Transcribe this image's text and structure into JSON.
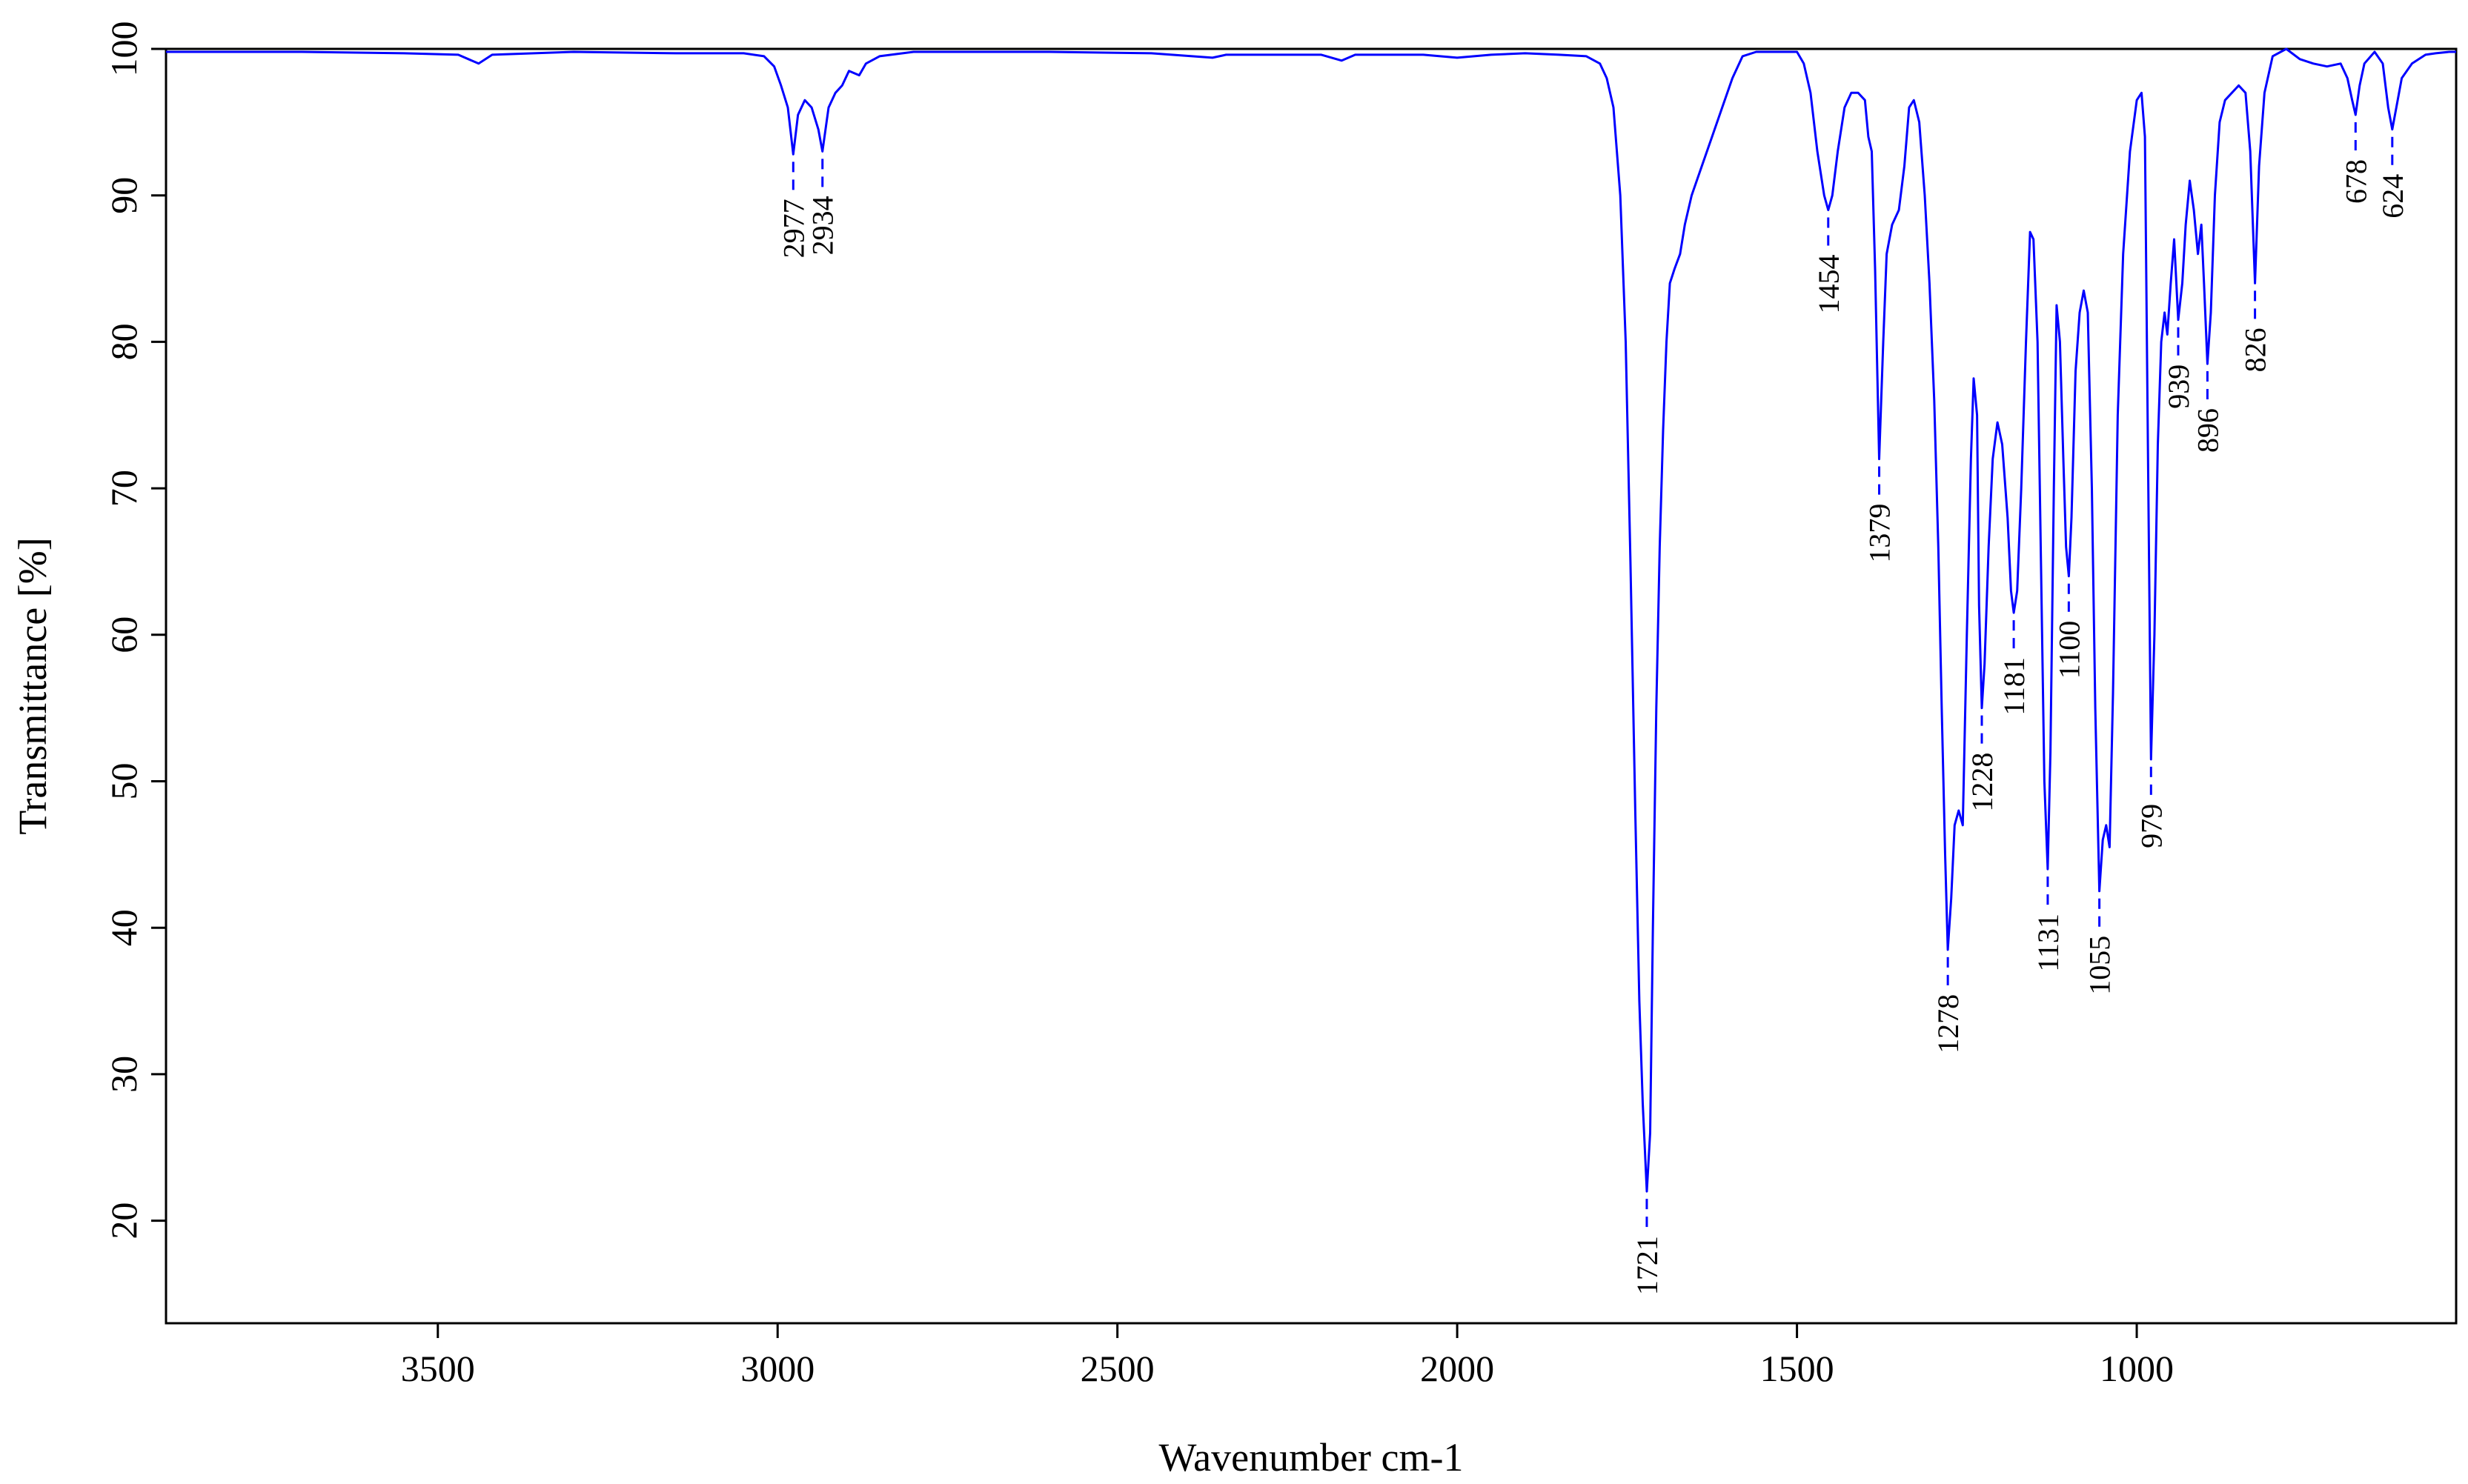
{
  "chart_data": {
    "type": "line",
    "title": "",
    "xlabel": "Wavenumber cm-1",
    "ylabel": "Transmittance [%]",
    "xlim": [
      3900,
      530
    ],
    "ylim": [
      13,
      100
    ],
    "x_reversed": true,
    "grid": false,
    "legend": "none",
    "line_color": "#0000ff",
    "x_ticks": [
      3500,
      3000,
      2500,
      2000,
      1500,
      1000
    ],
    "y_ticks": [
      20,
      30,
      40,
      50,
      60,
      70,
      80,
      90,
      100
    ],
    "series": [
      {
        "points": [
          [
            3900,
            99.8
          ],
          [
            3700,
            99.8
          ],
          [
            3550,
            99.7
          ],
          [
            3470,
            99.6
          ],
          [
            3440,
            99.0
          ],
          [
            3420,
            99.6
          ],
          [
            3300,
            99.8
          ],
          [
            3150,
            99.7
          ],
          [
            3050,
            99.7
          ],
          [
            3020,
            99.5
          ],
          [
            3005,
            98.8
          ],
          [
            2995,
            97.5
          ],
          [
            2985,
            96.0
          ],
          [
            2977,
            92.8
          ],
          [
            2970,
            95.5
          ],
          [
            2960,
            96.5
          ],
          [
            2950,
            96.0
          ],
          [
            2940,
            94.5
          ],
          [
            2934,
            93.0
          ],
          [
            2925,
            96.0
          ],
          [
            2915,
            97.0
          ],
          [
            2905,
            97.5
          ],
          [
            2895,
            98.5
          ],
          [
            2880,
            98.2
          ],
          [
            2870,
            99.0
          ],
          [
            2850,
            99.5
          ],
          [
            2800,
            99.8
          ],
          [
            2600,
            99.8
          ],
          [
            2450,
            99.7
          ],
          [
            2360,
            99.4
          ],
          [
            2340,
            99.6
          ],
          [
            2200,
            99.6
          ],
          [
            2170,
            99.2
          ],
          [
            2150,
            99.6
          ],
          [
            2050,
            99.6
          ],
          [
            2000,
            99.4
          ],
          [
            1950,
            99.6
          ],
          [
            1900,
            99.7
          ],
          [
            1850,
            99.6
          ],
          [
            1810,
            99.5
          ],
          [
            1790,
            99.0
          ],
          [
            1780,
            98.0
          ],
          [
            1770,
            96.0
          ],
          [
            1760,
            90.0
          ],
          [
            1752,
            80.0
          ],
          [
            1745,
            65.0
          ],
          [
            1738,
            48.0
          ],
          [
            1732,
            35.0
          ],
          [
            1727,
            28.0
          ],
          [
            1721,
            22.0
          ],
          [
            1716,
            26.0
          ],
          [
            1712,
            40.0
          ],
          [
            1707,
            55.0
          ],
          [
            1702,
            66.0
          ],
          [
            1697,
            74.0
          ],
          [
            1692,
            80.0
          ],
          [
            1687,
            84.0
          ],
          [
            1680,
            85.0
          ],
          [
            1672,
            86.0
          ],
          [
            1665,
            88.0
          ],
          [
            1655,
            90.0
          ],
          [
            1640,
            92.0
          ],
          [
            1625,
            94.0
          ],
          [
            1610,
            96.0
          ],
          [
            1595,
            98.0
          ],
          [
            1580,
            99.5
          ],
          [
            1560,
            99.8
          ],
          [
            1500,
            99.8
          ],
          [
            1490,
            99.0
          ],
          [
            1480,
            97.0
          ],
          [
            1470,
            93.0
          ],
          [
            1460,
            90.0
          ],
          [
            1454,
            89.0
          ],
          [
            1448,
            90.0
          ],
          [
            1440,
            93.0
          ],
          [
            1430,
            96.0
          ],
          [
            1420,
            97.0
          ],
          [
            1410,
            97.0
          ],
          [
            1400,
            96.5
          ],
          [
            1395,
            94.0
          ],
          [
            1390,
            93.0
          ],
          [
            1385,
            85.0
          ],
          [
            1379,
            72.0
          ],
          [
            1373,
            80.0
          ],
          [
            1368,
            86.0
          ],
          [
            1360,
            88.0
          ],
          [
            1350,
            89.0
          ],
          [
            1342,
            92.0
          ],
          [
            1335,
            96.0
          ],
          [
            1328,
            96.5
          ],
          [
            1320,
            95.0
          ],
          [
            1312,
            90.0
          ],
          [
            1305,
            84.0
          ],
          [
            1298,
            76.0
          ],
          [
            1292,
            66.0
          ],
          [
            1287,
            55.0
          ],
          [
            1282,
            45.0
          ],
          [
            1278,
            38.5
          ],
          [
            1273,
            42.0
          ],
          [
            1268,
            47.0
          ],
          [
            1262,
            48.0
          ],
          [
            1256,
            47.0
          ],
          [
            1250,
            60.0
          ],
          [
            1244,
            72.0
          ],
          [
            1240,
            77.5
          ],
          [
            1235,
            75.0
          ],
          [
            1232,
            62.0
          ],
          [
            1228,
            55.0
          ],
          [
            1224,
            58.0
          ],
          [
            1218,
            66.0
          ],
          [
            1212,
            72.0
          ],
          [
            1205,
            74.5
          ],
          [
            1198,
            73.0
          ],
          [
            1190,
            68.0
          ],
          [
            1185,
            63.0
          ],
          [
            1181,
            61.5
          ],
          [
            1176,
            63.0
          ],
          [
            1170,
            70.0
          ],
          [
            1163,
            80.0
          ],
          [
            1157,
            87.5
          ],
          [
            1152,
            87.0
          ],
          [
            1146,
            80.0
          ],
          [
            1141,
            65.0
          ],
          [
            1136,
            50.0
          ],
          [
            1131,
            44.0
          ],
          [
            1127,
            52.0
          ],
          [
            1122,
            70.0
          ],
          [
            1118,
            82.5
          ],
          [
            1113,
            80.0
          ],
          [
            1108,
            72.0
          ],
          [
            1104,
            66.0
          ],
          [
            1100,
            64.0
          ],
          [
            1096,
            68.0
          ],
          [
            1090,
            78.0
          ],
          [
            1084,
            82.0
          ],
          [
            1078,
            83.5
          ],
          [
            1072,
            82.0
          ],
          [
            1066,
            70.0
          ],
          [
            1061,
            55.0
          ],
          [
            1055,
            42.5
          ],
          [
            1050,
            46.0
          ],
          [
            1045,
            47.0
          ],
          [
            1040,
            45.5
          ],
          [
            1035,
            56.0
          ],
          [
            1028,
            75.0
          ],
          [
            1020,
            86.0
          ],
          [
            1010,
            93.0
          ],
          [
            1000,
            96.5
          ],
          [
            993,
            97.0
          ],
          [
            988,
            94.0
          ],
          [
            984,
            75.0
          ],
          [
            979,
            51.5
          ],
          [
            974,
            60.0
          ],
          [
            969,
            73.0
          ],
          [
            964,
            80.0
          ],
          [
            959,
            82.0
          ],
          [
            955,
            80.5
          ],
          [
            950,
            84.0
          ],
          [
            945,
            87.0
          ],
          [
            939,
            81.5
          ],
          [
            933,
            84.0
          ],
          [
            928,
            88.0
          ],
          [
            922,
            91.0
          ],
          [
            916,
            89.0
          ],
          [
            910,
            86.0
          ],
          [
            905,
            88.0
          ],
          [
            901,
            84.0
          ],
          [
            896,
            78.5
          ],
          [
            891,
            82.0
          ],
          [
            885,
            90.0
          ],
          [
            878,
            95.0
          ],
          [
            870,
            96.5
          ],
          [
            860,
            97.0
          ],
          [
            850,
            97.5
          ],
          [
            840,
            97.0
          ],
          [
            833,
            93.0
          ],
          [
            826,
            84.0
          ],
          [
            820,
            92.0
          ],
          [
            812,
            97.0
          ],
          [
            800,
            99.5
          ],
          [
            780,
            100.0
          ],
          [
            760,
            99.3
          ],
          [
            740,
            99.0
          ],
          [
            720,
            98.8
          ],
          [
            700,
            99.0
          ],
          [
            690,
            98.0
          ],
          [
            683,
            96.5
          ],
          [
            678,
            95.5
          ],
          [
            672,
            97.5
          ],
          [
            665,
            99.0
          ],
          [
            650,
            99.8
          ],
          [
            638,
            99.0
          ],
          [
            630,
            96.0
          ],
          [
            624,
            94.5
          ],
          [
            618,
            96.0
          ],
          [
            610,
            98.0
          ],
          [
            595,
            99.0
          ],
          [
            575,
            99.6
          ],
          [
            560,
            99.7
          ],
          [
            540,
            99.8
          ],
          [
            530,
            99.8
          ]
        ]
      }
    ],
    "peaks": [
      {
        "label": "2977",
        "x": 2977,
        "y": 92.8
      },
      {
        "label": "2934",
        "x": 2934,
        "y": 93.0
      },
      {
        "label": "1721",
        "x": 1721,
        "y": 22.0
      },
      {
        "label": "1454",
        "x": 1454,
        "y": 89.0
      },
      {
        "label": "1379",
        "x": 1379,
        "y": 72.0
      },
      {
        "label": "1278",
        "x": 1278,
        "y": 38.5
      },
      {
        "label": "1228",
        "x": 1228,
        "y": 55.0
      },
      {
        "label": "1181",
        "x": 1181,
        "y": 61.5
      },
      {
        "label": "1131",
        "x": 1131,
        "y": 44.0
      },
      {
        "label": "1100",
        "x": 1100,
        "y": 64.0
      },
      {
        "label": "1055",
        "x": 1055,
        "y": 42.5
      },
      {
        "label": "979",
        "x": 979,
        "y": 51.5
      },
      {
        "label": "939",
        "x": 939,
        "y": 81.5
      },
      {
        "label": "896",
        "x": 896,
        "y": 78.5
      },
      {
        "label": "826",
        "x": 826,
        "y": 84.0
      },
      {
        "label": "678",
        "x": 678,
        "y": 95.5
      },
      {
        "label": "624",
        "x": 624,
        "y": 94.5
      }
    ]
  }
}
